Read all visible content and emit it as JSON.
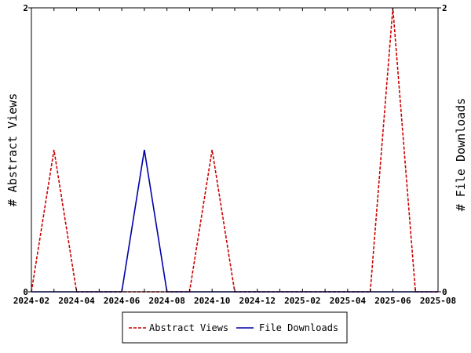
{
  "chart_data": {
    "type": "line",
    "x_ticks": [
      "2024-02",
      "2024-04",
      "2024-06",
      "2024-08",
      "2024-10",
      "2024-12",
      "2025-02",
      "2025-04",
      "2025-06",
      "2025-08"
    ],
    "x_months": [
      "2024-02",
      "2024-03",
      "2024-04",
      "2024-05",
      "2024-06",
      "2024-07",
      "2024-08",
      "2024-09",
      "2024-10",
      "2024-11",
      "2024-12",
      "2025-01",
      "2025-02",
      "2025-03",
      "2025-04",
      "2025-05",
      "2025-06",
      "2025-07",
      "2025-08"
    ],
    "ylabel_left": "# Abstract Views",
    "ylabel_right": "# File Downloads",
    "y_left_ticks": [
      "0",
      "2"
    ],
    "y_right_ticks": [
      "0",
      "2"
    ],
    "ylim_left": [
      0,
      2
    ],
    "ylim_right": [
      0,
      2
    ],
    "grid": false,
    "legend_position": "bottom",
    "series": [
      {
        "name": "Abstract Views",
        "axis": "left",
        "color": "#cc0000",
        "dash": "dashed",
        "values": [
          0,
          1,
          0,
          0,
          0,
          0,
          0,
          0,
          1,
          0,
          0,
          0,
          0,
          0,
          0,
          0,
          2,
          0,
          0
        ]
      },
      {
        "name": "File Downloads",
        "axis": "right",
        "color": "#0000aa",
        "dash": "solid",
        "values": [
          0,
          0,
          0,
          0,
          0,
          1,
          0,
          0,
          0,
          0,
          0,
          0,
          0,
          0,
          0,
          0,
          0,
          0,
          0
        ]
      }
    ]
  }
}
